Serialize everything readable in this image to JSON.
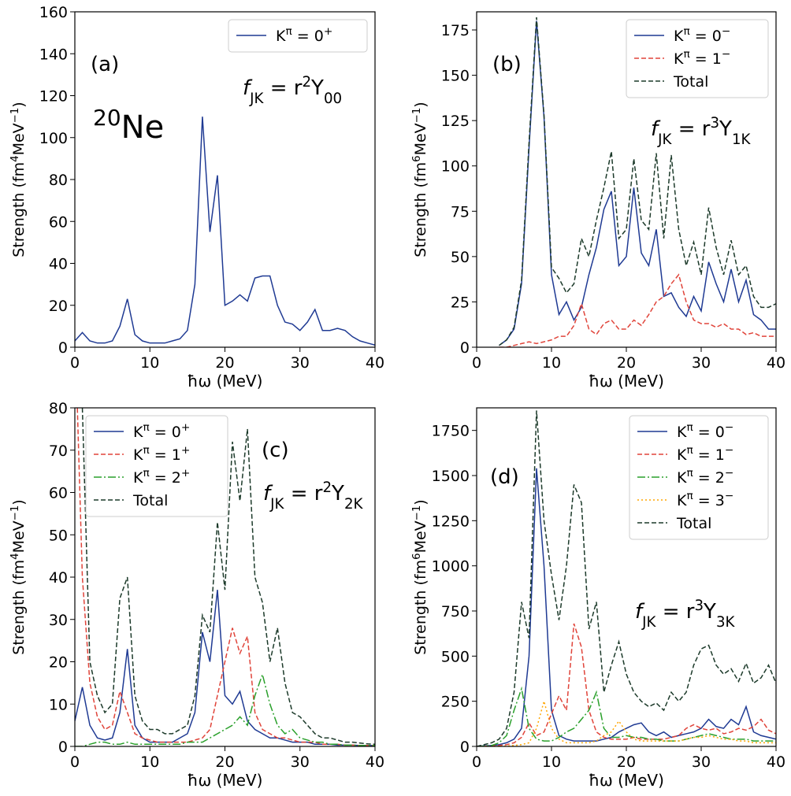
{
  "chart_data": [
    {
      "type": "line",
      "panel_label": "(a)",
      "annotation": [
        {
          "text": "f"
        },
        {
          "text": "JK",
          "shift": "sub"
        },
        {
          "text": " = r"
        },
        {
          "text": "2",
          "shift": "sup"
        },
        {
          "text": "Y"
        },
        {
          "text": "00",
          "shift": "sub"
        }
      ],
      "nucleus": [
        {
          "text": "20",
          "shift": "sup"
        },
        {
          "text": "Ne"
        }
      ],
      "xlabel": "ħω (MeV)",
      "ylabel": [
        {
          "text": "Strength (fm"
        },
        {
          "text": "4",
          "shift": "sup"
        },
        {
          "text": "MeV"
        },
        {
          "text": "−1",
          "shift": "sup"
        },
        {
          "text": ")"
        }
      ],
      "x": [
        0,
        1,
        2,
        3,
        4,
        5,
        6,
        7,
        8,
        9,
        10,
        11,
        12,
        13,
        14,
        15,
        16,
        17,
        18,
        19,
        20,
        21,
        22,
        23,
        24,
        25,
        26,
        27,
        28,
        29,
        30,
        31,
        32,
        33,
        34,
        35,
        36,
        37,
        38,
        39,
        40
      ],
      "xlim": [
        0,
        40
      ],
      "xticks": [
        0,
        10,
        20,
        30,
        40
      ],
      "ylim": [
        0,
        160
      ],
      "yticks": [
        0,
        20,
        40,
        60,
        80,
        100,
        120,
        140,
        160
      ],
      "legend": "upper right",
      "series": [
        {
          "name": "Kπ = 0+",
          "color": "#1f3a93",
          "dash": "solid",
          "values": [
            3,
            7,
            3,
            2,
            2,
            3,
            10,
            23,
            6,
            3,
            2,
            2,
            2,
            3,
            4,
            8,
            30,
            110,
            55,
            82,
            20,
            22,
            25,
            22,
            33,
            34,
            34,
            20,
            12,
            11,
            8,
            12,
            18,
            8,
            8,
            9,
            8,
            5,
            3,
            2,
            1
          ]
        }
      ]
    },
    {
      "type": "line",
      "panel_label": "(b)",
      "annotation": [
        {
          "text": "f"
        },
        {
          "text": "JK",
          "shift": "sub"
        },
        {
          "text": " = r"
        },
        {
          "text": "3",
          "shift": "sup"
        },
        {
          "text": "Y"
        },
        {
          "text": "1K",
          "shift": "sub"
        }
      ],
      "xlabel": "ħω (MeV)",
      "ylabel": [
        {
          "text": "Strength (fm"
        },
        {
          "text": "6",
          "shift": "sup"
        },
        {
          "text": "MeV"
        },
        {
          "text": "−1",
          "shift": "sup"
        },
        {
          "text": ")"
        }
      ],
      "x": [
        0,
        1,
        2,
        3,
        4,
        5,
        6,
        7,
        8,
        9,
        10,
        11,
        12,
        13,
        14,
        15,
        16,
        17,
        18,
        19,
        20,
        21,
        22,
        23,
        24,
        25,
        26,
        27,
        28,
        29,
        30,
        31,
        32,
        33,
        34,
        35,
        36,
        37,
        38,
        39,
        40
      ],
      "xlim": [
        0,
        40
      ],
      "xticks": [
        0,
        10,
        20,
        30,
        40
      ],
      "ylim": [
        0,
        185
      ],
      "yticks": [
        0,
        25,
        50,
        75,
        100,
        125,
        150,
        175
      ],
      "legend": "upper right",
      "series": [
        {
          "name": "Kπ = 0−",
          "color": "#1f3a93",
          "dash": "solid",
          "values": [
            null,
            null,
            null,
            1,
            4,
            10,
            35,
            110,
            180,
            127,
            40,
            18,
            25,
            15,
            22,
            40,
            55,
            76,
            86,
            45,
            50,
            88,
            52,
            45,
            65,
            28,
            30,
            22,
            17,
            28,
            20,
            47,
            35,
            25,
            43,
            25,
            37,
            18,
            15,
            10,
            10
          ]
        },
        {
          "name": "Kπ = 1−",
          "color": "#e0443a",
          "dash": "dashed",
          "values": [
            null,
            null,
            null,
            0,
            0,
            1,
            2,
            3,
            2,
            3,
            4,
            6,
            6,
            12,
            24,
            10,
            7,
            13,
            15,
            10,
            10,
            15,
            12,
            18,
            25,
            28,
            35,
            40,
            25,
            15,
            13,
            13,
            11,
            13,
            10,
            10,
            7,
            8,
            6,
            6,
            6
          ]
        },
        {
          "name": "Total",
          "color": "#1c3a2a",
          "dash": "dashed",
          "values": [
            null,
            null,
            null,
            1,
            4,
            11,
            37,
            113,
            182,
            128,
            44,
            38,
            30,
            35,
            60,
            50,
            70,
            88,
            108,
            60,
            65,
            104,
            70,
            65,
            107,
            60,
            106,
            65,
            45,
            58,
            40,
            77,
            55,
            40,
            59,
            40,
            45,
            28,
            22,
            22,
            24
          ]
        }
      ]
    },
    {
      "type": "line",
      "panel_label": "(c)",
      "annotation": [
        {
          "text": "f"
        },
        {
          "text": "JK",
          "shift": "sub"
        },
        {
          "text": " = r"
        },
        {
          "text": "2",
          "shift": "sup"
        },
        {
          "text": "Y"
        },
        {
          "text": "2K",
          "shift": "sub"
        }
      ],
      "xlabel": "ħω (MeV)",
      "ylabel": [
        {
          "text": "Strength (fm"
        },
        {
          "text": "4",
          "shift": "sup"
        },
        {
          "text": "MeV"
        },
        {
          "text": "−1",
          "shift": "sup"
        },
        {
          "text": ")"
        }
      ],
      "x": [
        0,
        1,
        2,
        3,
        4,
        5,
        6,
        7,
        8,
        9,
        10,
        11,
        12,
        13,
        14,
        15,
        16,
        17,
        18,
        19,
        20,
        21,
        22,
        23,
        24,
        25,
        26,
        27,
        28,
        29,
        30,
        31,
        32,
        33,
        34,
        35,
        36,
        37,
        38,
        39,
        40
      ],
      "xlim": [
        0,
        40
      ],
      "xticks": [
        0,
        10,
        20,
        30,
        40
      ],
      "ylim": [
        0,
        80
      ],
      "yticks": [
        0,
        10,
        20,
        30,
        40,
        50,
        60,
        70,
        80
      ],
      "legend": "upper left",
      "series": [
        {
          "name": "Kπ = 0+",
          "color": "#1f3a93",
          "dash": "solid",
          "values": [
            6,
            14,
            5,
            2,
            1.5,
            2,
            8,
            23,
            5,
            2,
            1,
            1,
            1,
            1,
            2,
            3,
            8,
            27,
            20,
            37,
            12,
            10,
            13,
            6,
            4,
            3,
            2,
            2,
            1.5,
            1,
            1,
            1,
            0.5,
            0.5,
            0.5,
            0.3,
            0.3,
            0.3,
            0.2,
            0.2,
            0.2
          ]
        },
        {
          "name": "Kπ = 1+",
          "color": "#e0443a",
          "dash": "dashed",
          "values": [
            100,
            40,
            15,
            7,
            4,
            5,
            13,
            8,
            3,
            2,
            1.5,
            1,
            1,
            1,
            1,
            1,
            1.5,
            2,
            4,
            12,
            20,
            28,
            22,
            26,
            8,
            4,
            3,
            2,
            2,
            1.5,
            1,
            1,
            1,
            0.5,
            0.5,
            0.5,
            0.3,
            0.3,
            0.2,
            0.2,
            0.2
          ]
        },
        {
          "name": "Kπ = 2+",
          "color": "#2aa02b",
          "dash": "dashdot",
          "values": [
            0,
            0,
            0.5,
            1,
            1,
            0.5,
            0.5,
            1,
            0.5,
            0.5,
            0.5,
            0.5,
            0.5,
            0.5,
            0.5,
            1,
            1,
            1,
            2,
            3,
            4,
            5,
            7,
            5,
            12,
            17,
            10,
            5,
            3,
            4,
            2,
            1.5,
            1,
            1,
            0.5,
            0.5,
            0.3,
            0.3,
            0.2,
            0.2,
            0.2
          ]
        },
        {
          "name": "Total",
          "color": "#1c3a2a",
          "dash": "dashed",
          "values": [
            100,
            80,
            20,
            12,
            8,
            10,
            35,
            40,
            12,
            6,
            4,
            4,
            3,
            3,
            4,
            5,
            12,
            31,
            27,
            53,
            37,
            72,
            58,
            75,
            40,
            34,
            20,
            28,
            15,
            8,
            7,
            5,
            3,
            2,
            2,
            1.5,
            1,
            1,
            0.8,
            0.6,
            0.5
          ]
        }
      ]
    },
    {
      "type": "line",
      "panel_label": "(d)",
      "annotation": [
        {
          "text": "f"
        },
        {
          "text": "JK",
          "shift": "sub"
        },
        {
          "text": " = r"
        },
        {
          "text": "3",
          "shift": "sup"
        },
        {
          "text": "Y"
        },
        {
          "text": "3K",
          "shift": "sub"
        }
      ],
      "xlabel": "ħω (MeV)",
      "ylabel": [
        {
          "text": "Strength (fm"
        },
        {
          "text": "6",
          "shift": "sup"
        },
        {
          "text": "MeV"
        },
        {
          "text": "−1",
          "shift": "sup"
        },
        {
          "text": ")"
        }
      ],
      "x": [
        0,
        1,
        2,
        3,
        4,
        5,
        6,
        7,
        8,
        9,
        10,
        11,
        12,
        13,
        14,
        15,
        16,
        17,
        18,
        19,
        20,
        21,
        22,
        23,
        24,
        25,
        26,
        27,
        28,
        29,
        30,
        31,
        32,
        33,
        34,
        35,
        36,
        37,
        38,
        39,
        40
      ],
      "xlim": [
        0,
        40
      ],
      "xticks": [
        0,
        10,
        20,
        30,
        40
      ],
      "ylim": [
        0,
        1875
      ],
      "yticks": [
        0,
        250,
        500,
        750,
        1000,
        1250,
        1500,
        1750
      ],
      "legend": "upper right",
      "series": [
        {
          "name": "Kπ = 0−",
          "color": "#1f3a93",
          "dash": "solid",
          "values": [
            0,
            3,
            5,
            10,
            20,
            40,
            100,
            500,
            1540,
            1000,
            200,
            60,
            40,
            30,
            30,
            30,
            30,
            40,
            50,
            80,
            100,
            120,
            130,
            80,
            60,
            80,
            50,
            60,
            70,
            80,
            100,
            150,
            110,
            100,
            150,
            120,
            220,
            80,
            60,
            50,
            40
          ]
        },
        {
          "name": "Kπ = 1−",
          "color": "#e0443a",
          "dash": "dashed",
          "values": [
            0,
            1,
            2,
            5,
            10,
            20,
            50,
            130,
            60,
            80,
            180,
            280,
            200,
            680,
            550,
            200,
            80,
            50,
            40,
            40,
            40,
            50,
            40,
            40,
            40,
            40,
            50,
            60,
            100,
            120,
            100,
            90,
            100,
            70,
            80,
            100,
            90,
            110,
            150,
            90,
            70
          ]
        },
        {
          "name": "Kπ = 2−",
          "color": "#2aa02b",
          "dash": "dashdot",
          "values": [
            0,
            2,
            5,
            20,
            60,
            200,
            320,
            100,
            40,
            30,
            30,
            50,
            80,
            100,
            150,
            200,
            300,
            100,
            50,
            50,
            60,
            50,
            50,
            40,
            40,
            30,
            30,
            30,
            40,
            50,
            60,
            70,
            60,
            50,
            40,
            40,
            40,
            30,
            30,
            30,
            30
          ]
        },
        {
          "name": "Kπ = 3−",
          "color": "#ffa500",
          "dash": "dotted",
          "values": [
            0,
            0,
            0,
            0,
            2,
            5,
            10,
            20,
            100,
            250,
            100,
            40,
            20,
            20,
            20,
            20,
            30,
            60,
            80,
            140,
            80,
            40,
            30,
            30,
            30,
            30,
            30,
            30,
            40,
            50,
            50,
            60,
            50,
            40,
            40,
            30,
            30,
            20,
            20,
            20,
            20
          ]
        },
        {
          "name": "Total",
          "color": "#1c3a2a",
          "dash": "dashed",
          "values": [
            0,
            10,
            20,
            40,
            100,
            300,
            800,
            600,
            1860,
            1250,
            950,
            700,
            1000,
            1450,
            1350,
            650,
            800,
            300,
            450,
            580,
            400,
            300,
            250,
            220,
            240,
            200,
            300,
            250,
            300,
            450,
            540,
            560,
            450,
            400,
            430,
            360,
            460,
            350,
            380,
            450,
            350
          ]
        }
      ]
    }
  ]
}
